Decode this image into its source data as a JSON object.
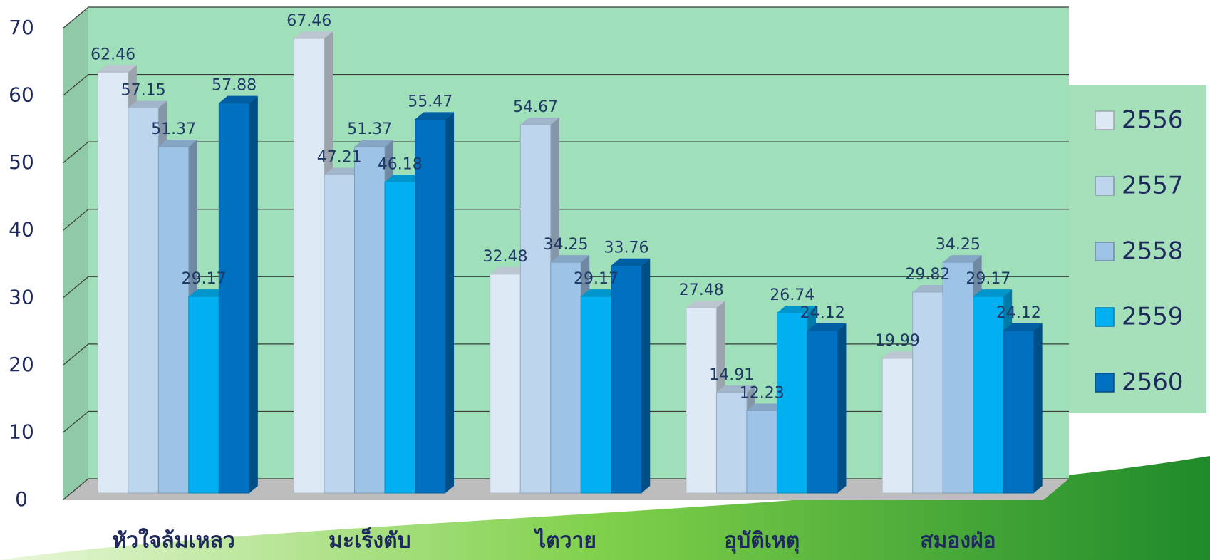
{
  "chart_data": {
    "type": "bar3d",
    "categories": [
      "หัวใจล้มเหลว",
      "มะเร็งตับ",
      "ไตวาย",
      "อุบัติเหตุ",
      "สมองฝ่อ"
    ],
    "series": [
      {
        "name": "2556",
        "color": "#dde9f5",
        "values": [
          62.46,
          67.46,
          32.48,
          27.48,
          19.99
        ]
      },
      {
        "name": "2557",
        "color": "#bdd6ee",
        "values": [
          57.15,
          47.21,
          54.67,
          14.91,
          29.82
        ]
      },
      {
        "name": "2558",
        "color": "#9dc3e6",
        "values": [
          51.37,
          51.37,
          34.25,
          12.23,
          34.25
        ]
      },
      {
        "name": "2559",
        "color": "#00b0f0",
        "values": [
          29.17,
          46.18,
          29.17,
          26.74,
          29.17
        ]
      },
      {
        "name": "2560",
        "color": "#0070c0",
        "values": [
          57.88,
          55.47,
          33.76,
          24.12,
          24.12
        ]
      }
    ],
    "ylim": [
      0,
      70
    ],
    "yticks": [
      0,
      10,
      20,
      30,
      40,
      50,
      60,
      70
    ],
    "grid": true,
    "legend": "right"
  }
}
